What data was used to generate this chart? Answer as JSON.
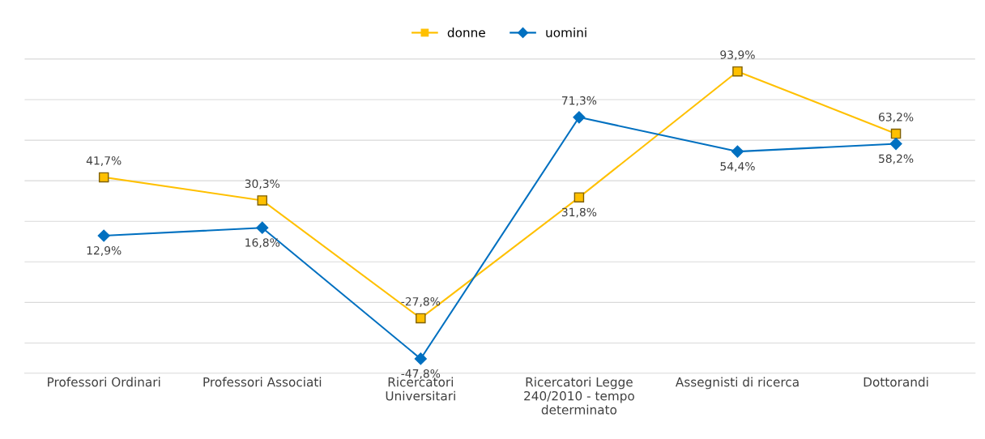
{
  "chart_data": {
    "type": "line",
    "categories": [
      "Professori Ordinari",
      "Professori Associati",
      "Ricercatori\nUniversitari",
      "Ricercatori Legge\n240/2010 - tempo\ndeterminato",
      "Assegnisti di ricerca",
      "Dottorandi"
    ],
    "series": [
      {
        "name": "donne",
        "color": "#ffc000",
        "marker": "square",
        "values": [
          41.7,
          30.3,
          -27.8,
          31.8,
          93.9,
          63.2
        ],
        "value_labels": [
          "41,7%",
          "30,3%",
          "-27,8%",
          "31,8%",
          "93,9%",
          "63,2%"
        ]
      },
      {
        "name": "uomini",
        "color": "#0070c0",
        "marker": "diamond",
        "values": [
          12.9,
          16.8,
          -47.8,
          71.3,
          54.4,
          58.2
        ],
        "value_labels": [
          "12,9%",
          "16,8%",
          "-47,8%",
          "71,3%",
          "54,4%",
          "58,2%"
        ]
      }
    ],
    "tick_labels": "x",
    "grid": "y",
    "legend": "top",
    "line_style": "solid"
  }
}
